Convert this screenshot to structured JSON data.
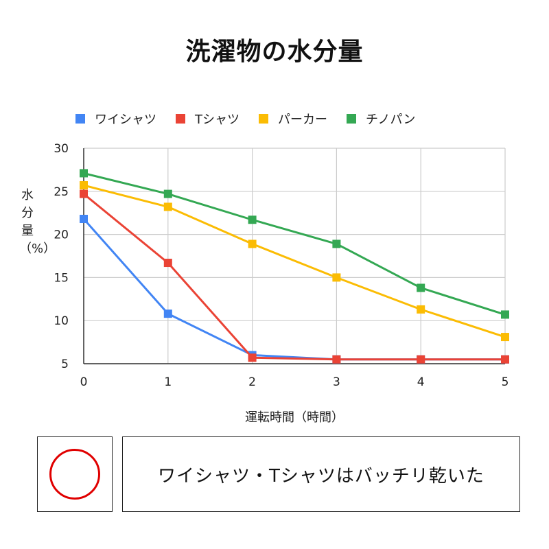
{
  "chart_data": {
    "type": "line",
    "title": "洗濯物の水分量",
    "xlabel": "運転時間（時間）",
    "ylabel": "水分量（%）",
    "x": [
      0,
      1,
      2,
      3,
      4,
      5
    ],
    "xlim": [
      0,
      5
    ],
    "ylim": [
      5,
      30
    ],
    "yticks": [
      5,
      10,
      15,
      20,
      25,
      30
    ],
    "grid": true,
    "legend_position": "top",
    "series": [
      {
        "name": "ワイシャツ",
        "color": "#4285F4",
        "values": [
          21.8,
          10.8,
          6.0,
          5.5,
          5.5,
          5.5
        ]
      },
      {
        "name": "Tシャツ",
        "color": "#EA4335",
        "values": [
          24.7,
          16.7,
          5.7,
          5.5,
          5.5,
          5.5
        ]
      },
      {
        "name": "パーカー",
        "color": "#FBBC04",
        "values": [
          25.7,
          23.2,
          18.9,
          15.0,
          11.3,
          8.1
        ]
      },
      {
        "name": "チノパン",
        "color": "#34A853",
        "values": [
          27.1,
          24.7,
          21.7,
          18.9,
          13.8,
          10.7
        ]
      }
    ]
  },
  "verdict": {
    "mark": "circle",
    "mark_color": "#e00000",
    "text": "ワイシャツ・Tシャツはバッチリ乾いた"
  }
}
